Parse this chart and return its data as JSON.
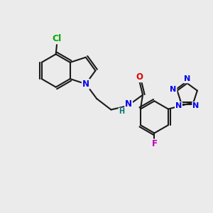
{
  "background_color": "#ebebeb",
  "bond_color": "#1a1a1a",
  "bond_lw": 1.5,
  "atom_colors": {
    "N": "#0000ee",
    "O": "#dd0000",
    "F": "#bb00bb",
    "Cl": "#00aa00",
    "H": "#007777",
    "C": "#1a1a1a"
  },
  "font_size": 8.5,
  "fig_size": [
    3.0,
    3.0
  ],
  "dpi": 100
}
